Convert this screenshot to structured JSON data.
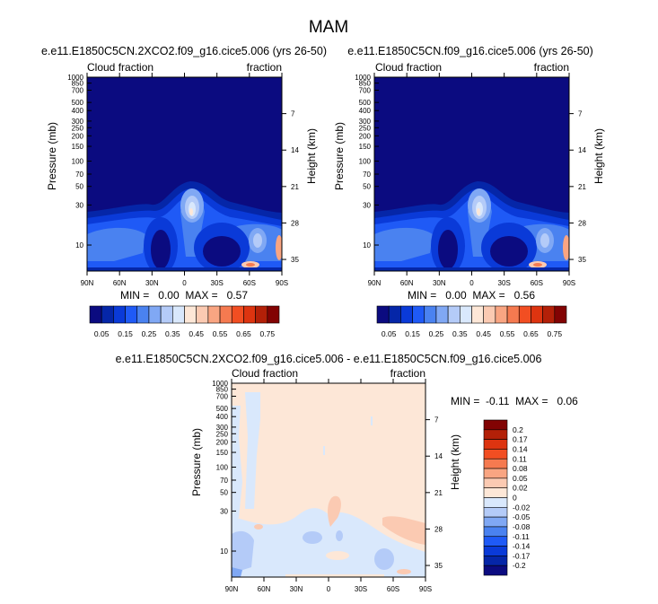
{
  "chart_data": {
    "type": "heatmap",
    "title": "MAM",
    "panels": [
      {
        "id": "p1",
        "title": "e.e11.E1850C5CN.2XCO2.f09_g16.cice5.006 (yrs 26-50)",
        "left_string": "Cloud fraction",
        "right_string": "fraction",
        "ylabel": "Pressure (mb)",
        "ylabel_right": "Height (km)",
        "xticks": [
          "90N",
          "60N",
          "30N",
          "0",
          "30S",
          "60S",
          "90S"
        ],
        "yticks": [
          10,
          30,
          50,
          70,
          100,
          150,
          200,
          250,
          300,
          400,
          500,
          700,
          850,
          1000
        ],
        "yticks_right": [
          35,
          28,
          21,
          14,
          7
        ],
        "ylim": [
          1000,
          4.9
        ],
        "min": 0.0,
        "max": 0.57,
        "minmax_label": "MIN =   0.00  MAX =   0.57"
      },
      {
        "id": "p2",
        "title": "e.e11.E1850C5CN.f09_g16.cice5.006 (yrs 26-50)",
        "left_string": "Cloud fraction",
        "right_string": "fraction",
        "ylabel": "Pressure (mb)",
        "ylabel_right": "Height (km)",
        "xticks": [
          "90N",
          "60N",
          "30N",
          "0",
          "30S",
          "60S",
          "90S"
        ],
        "yticks": [
          10,
          30,
          50,
          70,
          100,
          150,
          200,
          250,
          300,
          400,
          500,
          700,
          850,
          1000
        ],
        "yticks_right": [
          35,
          28,
          21,
          14,
          7
        ],
        "ylim": [
          1000,
          4.9
        ],
        "min": 0.0,
        "max": 0.56,
        "minmax_label": "MIN =   0.00  MAX =   0.56"
      },
      {
        "id": "p3",
        "title": "e.e11.E1850C5CN.2XCO2.f09_g16.cice5.006 - e.e11.E1850C5CN.f09_g16.cice5.006",
        "left_string": "Cloud fraction",
        "right_string": "fraction",
        "ylabel": "Pressure (mb)",
        "ylabel_right": "Height (km)",
        "xticks": [
          "90N",
          "60N",
          "30N",
          "0",
          "30S",
          "60S",
          "90S"
        ],
        "yticks": [
          10,
          30,
          50,
          70,
          100,
          150,
          200,
          250,
          300,
          400,
          500,
          700,
          850,
          1000
        ],
        "yticks_right": [
          35,
          28,
          21,
          14,
          7
        ],
        "ylim": [
          1000,
          4.9
        ],
        "min": -0.11,
        "max": 0.06,
        "minmax_label": "MIN =  -0.11  MAX =   0.06"
      }
    ],
    "colorbar_abs": {
      "levels": [
        "0.05",
        "0.15",
        "0.25",
        "0.35",
        "0.45",
        "0.55",
        "0.65",
        "0.75"
      ],
      "colors": [
        "#0b0b80",
        "#0526a8",
        "#0a3ad8",
        "#1f5af6",
        "#4a82f0",
        "#80a8f4",
        "#b4cbf8",
        "#d9e8fc",
        "#fde7d7",
        "#fbcab2",
        "#f9a582",
        "#f57a50",
        "#f24e22",
        "#dd3410",
        "#b32008",
        "#820303"
      ]
    },
    "colorbar_diff": {
      "levels": [
        "0.2",
        "0.17",
        "0.14",
        "0.11",
        "0.08",
        "0.05",
        "0.02",
        "0",
        "-0.02",
        "-0.05",
        "-0.08",
        "-0.11",
        "-0.14",
        "-0.17",
        "-0.2"
      ],
      "colors": [
        "#820303",
        "#b32008",
        "#dd3410",
        "#f24e22",
        "#f57a50",
        "#f9a582",
        "#fbcab2",
        "#fde7d7",
        "#d9e8fc",
        "#b4cbf8",
        "#80a8f4",
        "#4a82f0",
        "#1f5af6",
        "#0a3ad8",
        "#0526a8",
        "#0b0b80"
      ]
    }
  }
}
